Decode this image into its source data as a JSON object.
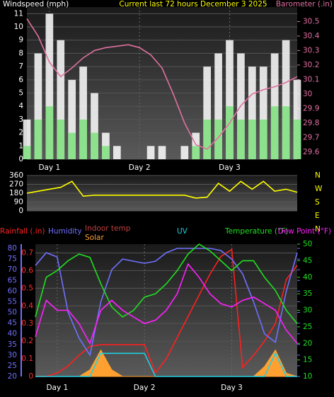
{
  "chart_data": [
    {
      "type": "bar",
      "title": "Current last 72 hours December 3 2025",
      "ylabel": "Windspeed (mph)",
      "y2label": "Barometer (.in)",
      "xlim": [
        0,
        72
      ],
      "xticks": [
        {
          "value": 6,
          "label": "Day 1"
        },
        {
          "value": 30,
          "label": "Day 2"
        },
        {
          "value": 54,
          "label": "Day 3"
        }
      ],
      "ylim": [
        0,
        11.5
      ],
      "yticks": [
        0,
        1,
        2,
        3,
        4,
        5,
        6,
        7,
        8,
        9,
        10,
        11
      ],
      "ytick_color": "#ffffff",
      "y2lim": [
        29.55,
        30.6
      ],
      "y2ticks": [
        29.6,
        29.7,
        29.8,
        29.9,
        30,
        30.1,
        30.2,
        30.3,
        30.4,
        30.5
      ],
      "y2tick_color": "#e070a0",
      "x": [
        0,
        3,
        6,
        9,
        12,
        15,
        18,
        21,
        24,
        27,
        30,
        33,
        36,
        39,
        42,
        45,
        48,
        51,
        54,
        57,
        60,
        63,
        66,
        69,
        72
      ],
      "series": [
        {
          "color": "#ffffff",
          "values": [
            3,
            8,
            11,
            9,
            6,
            7,
            5,
            2,
            1,
            0,
            0,
            1,
            1,
            0,
            1,
            2,
            7,
            8,
            9,
            8,
            7,
            7,
            8,
            9,
            6
          ]
        },
        {
          "color": "#7ee07e",
          "values": [
            1,
            3,
            4,
            3,
            2,
            3,
            2,
            1,
            0,
            0,
            0,
            0,
            0,
            0,
            0,
            1,
            3,
            3,
            4,
            3,
            3,
            3,
            4,
            4,
            3
          ]
        },
        {
          "type": "line",
          "axis": "y2",
          "color": "#e070a0",
          "values": [
            30.52,
            30.4,
            30.22,
            30.12,
            30.18,
            30.25,
            30.3,
            30.32,
            30.33,
            30.34,
            30.32,
            30.27,
            30.18,
            30,
            29.8,
            29.65,
            29.62,
            29.7,
            29.8,
            29.92,
            30,
            30.03,
            30.05,
            30.08,
            30.12
          ]
        }
      ]
    },
    {
      "type": "line",
      "xlim": [
        0,
        72
      ],
      "ylim": [
        0,
        360
      ],
      "yticks": [
        0,
        90,
        180,
        270,
        360
      ],
      "ytick_color": "#ffffff",
      "compass": [
        "N",
        "W",
        "S",
        "E",
        "N"
      ],
      "compass_color": "#ffff00",
      "x": [
        0,
        3,
        6,
        9,
        12,
        15,
        18,
        21,
        24,
        27,
        30,
        33,
        36,
        39,
        42,
        45,
        48,
        51,
        54,
        57,
        60,
        63,
        66,
        69,
        72
      ],
      "series": [
        {
          "color": "#ffff00",
          "values": [
            180,
            200,
            220,
            240,
            300,
            150,
            160,
            160,
            160,
            160,
            160,
            160,
            160,
            160,
            160,
            130,
            140,
            280,
            200,
            300,
            220,
            300,
            200,
            220,
            190
          ]
        }
      ]
    },
    {
      "type": "line",
      "xlim": [
        0,
        72
      ],
      "xticks": [
        {
          "value": 6,
          "label": "Day 1"
        },
        {
          "value": 30,
          "label": "Day 2"
        },
        {
          "value": 54,
          "label": "Day 3"
        }
      ],
      "ylim": [
        0,
        0.75
      ],
      "yticks": [
        0,
        0.1,
        0.2,
        0.3,
        0.4,
        0.5,
        0.6,
        0.7
      ],
      "ytick_color": "#ff3030",
      "y3lim": [
        20,
        82
      ],
      "y3ticks": [
        20,
        25,
        30,
        35,
        40,
        45,
        50,
        55,
        60,
        65,
        70,
        75,
        80
      ],
      "y3tick_color": "#7070ff",
      "y2lim": [
        10,
        50
      ],
      "y2ticks": [
        10,
        15,
        20,
        25,
        30,
        35,
        40,
        45,
        50
      ],
      "y2tick_color": "#20e020",
      "extra_label": "Indoor temp",
      "extra_label_color": "#c04040",
      "x": [
        0,
        3,
        6,
        9,
        12,
        15,
        18,
        21,
        24,
        27,
        30,
        33,
        36,
        39,
        42,
        45,
        48,
        51,
        54,
        57,
        60,
        63,
        66,
        69,
        72
      ],
      "series": [
        {
          "name": "Rainfall (.in)",
          "color": "#ff2020",
          "values": [
            0,
            0,
            0.02,
            0.06,
            0.12,
            0.17,
            0.18,
            0.18,
            0.18,
            0.18,
            0.18,
            0.02,
            0.1,
            0.22,
            0.34,
            0.46,
            0.58,
            0.68,
            0.72,
            0.05,
            0.12,
            0.2,
            0.3,
            0.55,
            0.63
          ]
        },
        {
          "name": "Humidity",
          "axis": "y3",
          "color": "#7070ff",
          "values": [
            72,
            78,
            76,
            50,
            38,
            30,
            55,
            70,
            75,
            74,
            73,
            74,
            78,
            80,
            80,
            80,
            80,
            79,
            75,
            68,
            55,
            40,
            36,
            60,
            78
          ]
        },
        {
          "name": "Solar",
          "type": "area",
          "axis": "y2",
          "color": "#ffa030",
          "values": [
            10,
            10,
            10,
            10,
            10,
            12,
            18,
            12,
            10,
            10,
            10,
            10,
            10,
            10,
            10,
            10,
            10,
            10,
            10,
            10,
            10,
            13,
            18,
            11,
            10
          ]
        },
        {
          "name": "UV",
          "axis": "y2",
          "color": "#20d0e0",
          "values": [
            10,
            10,
            10,
            10,
            10,
            10,
            17,
            17,
            17,
            17,
            17,
            10,
            10,
            10,
            10,
            10,
            10,
            10,
            10,
            10,
            10,
            10,
            17,
            10,
            10
          ]
        },
        {
          "name": "Temperature (°F)",
          "axis": "y2",
          "color": "#20e020",
          "values": [
            28,
            40,
            42,
            45,
            47,
            46,
            38,
            31,
            28,
            30,
            34,
            35,
            38,
            42,
            47,
            50,
            48,
            45,
            42,
            45,
            45,
            40,
            36,
            30,
            26
          ]
        },
        {
          "name": "Dew Point (°F)",
          "axis": "y2",
          "color": "#ff20ff",
          "values": [
            22,
            33,
            30,
            30,
            26,
            20,
            30,
            33,
            30,
            28,
            26,
            27,
            30,
            35,
            44,
            40,
            35,
            32,
            31,
            33,
            34,
            32,
            30,
            24,
            20
          ]
        }
      ]
    }
  ]
}
